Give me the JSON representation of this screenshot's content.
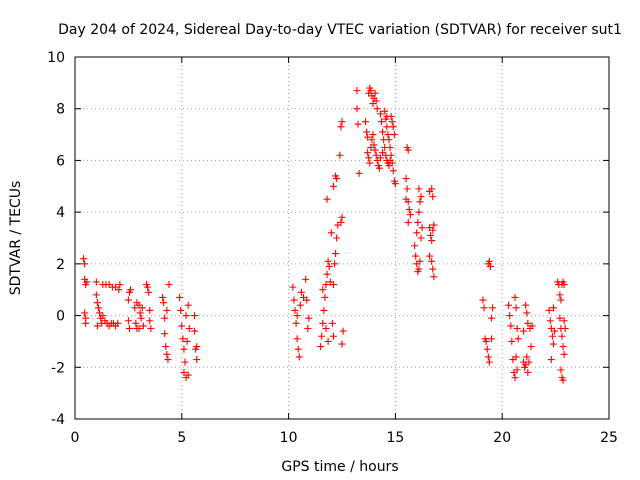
{
  "chart_data": {
    "type": "scatter",
    "title": "Day 204 of 2024, Sidereal Day-to-day VTEC variation (SDTVAR) for receiver sut1",
    "xlabel": "GPS time / hours",
    "ylabel": "SDTVAR / TECUs",
    "xlim": [
      0,
      25
    ],
    "ylim": [
      -4,
      10
    ],
    "xticks": [
      0,
      5,
      10,
      15,
      20,
      25
    ],
    "yticks": [
      -4,
      -2,
      0,
      2,
      4,
      6,
      8,
      10
    ],
    "xtick_labels": [
      "0",
      "5",
      "10",
      "15",
      "20",
      "25"
    ],
    "ytick_labels": [
      "-4",
      "-2",
      "0",
      "2",
      "4",
      "6",
      "8",
      "10"
    ],
    "grid": true,
    "marker": "+",
    "color": "#ff0000",
    "series": [
      {
        "name": "SDTVAR",
        "points": [
          [
            0.4,
            2.2
          ],
          [
            0.45,
            2.0
          ],
          [
            0.45,
            1.4
          ],
          [
            0.5,
            1.2
          ],
          [
            0.5,
            -0.1
          ],
          [
            0.45,
            0.1
          ],
          [
            0.5,
            -0.3
          ],
          [
            0.55,
            1.3
          ],
          [
            1.0,
            0.8
          ],
          [
            1.05,
            0.5
          ],
          [
            1.1,
            0.3
          ],
          [
            1.15,
            0.1
          ],
          [
            1.2,
            -0.1
          ],
          [
            1.25,
            -0.3
          ],
          [
            1.05,
            -0.4
          ],
          [
            1.0,
            1.3
          ],
          [
            1.3,
            0.0
          ],
          [
            1.4,
            -0.2
          ],
          [
            1.5,
            -0.3
          ],
          [
            1.6,
            -0.4
          ],
          [
            1.7,
            -0.3
          ],
          [
            1.8,
            -0.3
          ],
          [
            1.9,
            -0.4
          ],
          [
            2.0,
            -0.3
          ],
          [
            1.3,
            1.2
          ],
          [
            1.45,
            1.2
          ],
          [
            1.6,
            1.2
          ],
          [
            1.75,
            1.1
          ],
          [
            1.9,
            1.1
          ],
          [
            2.05,
            1.0
          ],
          [
            2.1,
            1.2
          ],
          [
            2.5,
            -0.2
          ],
          [
            2.55,
            -0.5
          ],
          [
            2.5,
            0.6
          ],
          [
            2.55,
            0.9
          ],
          [
            2.6,
            1.0
          ],
          [
            2.8,
            0.3
          ],
          [
            2.85,
            -0.3
          ],
          [
            2.9,
            -0.5
          ],
          [
            2.9,
            0.5
          ],
          [
            3.0,
            0.4
          ],
          [
            3.05,
            0.1
          ],
          [
            3.1,
            -0.1
          ],
          [
            3.0,
            -0.5
          ],
          [
            3.15,
            0.3
          ],
          [
            3.2,
            -0.4
          ],
          [
            3.35,
            1.2
          ],
          [
            3.4,
            1.1
          ],
          [
            3.45,
            0.9
          ],
          [
            3.5,
            -0.2
          ],
          [
            3.55,
            -0.5
          ],
          [
            3.5,
            0.2
          ],
          [
            4.1,
            0.7
          ],
          [
            4.15,
            0.5
          ],
          [
            4.2,
            -0.1
          ],
          [
            4.2,
            -0.7
          ],
          [
            4.25,
            -1.2
          ],
          [
            4.3,
            -1.5
          ],
          [
            4.35,
            -1.7
          ],
          [
            4.4,
            1.2
          ],
          [
            4.3,
            0.2
          ],
          [
            4.9,
            0.7
          ],
          [
            4.95,
            0.2
          ],
          [
            5.0,
            -0.4
          ],
          [
            5.05,
            -0.9
          ],
          [
            5.1,
            -1.3
          ],
          [
            5.15,
            -1.8
          ],
          [
            5.1,
            -2.2
          ],
          [
            5.2,
            -2.4
          ],
          [
            5.3,
            -2.3
          ],
          [
            5.25,
            -1.0
          ],
          [
            5.3,
            0.4
          ],
          [
            5.35,
            -0.5
          ],
          [
            5.2,
            0.0
          ],
          [
            5.6,
            0.0
          ],
          [
            5.6,
            -0.6
          ],
          [
            5.65,
            -1.3
          ],
          [
            5.7,
            -1.7
          ],
          [
            5.7,
            -1.2
          ],
          [
            10.2,
            1.1
          ],
          [
            10.25,
            0.6
          ],
          [
            10.3,
            0.2
          ],
          [
            10.35,
            -0.3
          ],
          [
            10.4,
            -0.9
          ],
          [
            10.45,
            -1.3
          ],
          [
            10.5,
            -1.6
          ],
          [
            10.55,
            0.4
          ],
          [
            10.6,
            0.9
          ],
          [
            10.7,
            0.7
          ],
          [
            10.8,
            1.4
          ],
          [
            10.85,
            0.6
          ],
          [
            10.9,
            -0.5
          ],
          [
            10.95,
            -0.1
          ],
          [
            10.4,
            0.0
          ],
          [
            11.5,
            -1.2
          ],
          [
            11.55,
            -0.8
          ],
          [
            11.6,
            -0.3
          ],
          [
            11.65,
            0.2
          ],
          [
            11.7,
            0.7
          ],
          [
            11.75,
            1.2
          ],
          [
            11.8,
            1.6
          ],
          [
            11.85,
            2.1
          ],
          [
            11.9,
            1.9
          ],
          [
            11.85,
            -1.0
          ],
          [
            11.75,
            -0.5
          ],
          [
            11.95,
            1.3
          ],
          [
            11.6,
            1.0
          ],
          [
            12.05,
            -0.3
          ],
          [
            12.1,
            -0.8
          ],
          [
            12.15,
            2.0
          ],
          [
            12.2,
            2.4
          ],
          [
            12.25,
            3.0
          ],
          [
            12.3,
            3.5
          ],
          [
            12.0,
            3.2
          ],
          [
            12.1,
            1.2
          ],
          [
            11.8,
            4.5
          ],
          [
            12.1,
            5.0
          ],
          [
            12.2,
            5.4
          ],
          [
            12.25,
            5.3
          ],
          [
            12.45,
            3.6
          ],
          [
            12.5,
            3.8
          ],
          [
            12.45,
            7.3
          ],
          [
            12.5,
            7.5
          ],
          [
            12.4,
            6.2
          ],
          [
            12.55,
            -0.6
          ],
          [
            12.5,
            -1.1
          ],
          [
            13.2,
            8.7
          ],
          [
            13.2,
            8.0
          ],
          [
            13.25,
            7.4
          ],
          [
            13.3,
            5.5
          ],
          [
            13.6,
            7.5
          ],
          [
            13.65,
            7.1
          ],
          [
            13.7,
            6.9
          ],
          [
            13.75,
            8.6
          ],
          [
            13.8,
            8.8
          ],
          [
            13.85,
            8.7
          ],
          [
            13.9,
            8.5
          ],
          [
            13.95,
            8.2
          ],
          [
            14.0,
            8.4
          ],
          [
            14.05,
            8.6
          ],
          [
            14.1,
            8.3
          ],
          [
            14.15,
            8.0
          ],
          [
            13.7,
            6.3
          ],
          [
            13.75,
            6.1
          ],
          [
            13.8,
            5.9
          ],
          [
            13.85,
            6.5
          ],
          [
            13.9,
            6.8
          ],
          [
            13.95,
            7.0
          ],
          [
            14.0,
            6.6
          ],
          [
            14.05,
            6.4
          ],
          [
            14.1,
            6.2
          ],
          [
            14.15,
            6.0
          ],
          [
            14.2,
            5.8
          ],
          [
            14.25,
            5.7
          ],
          [
            14.3,
            7.8
          ],
          [
            14.35,
            7.5
          ],
          [
            14.4,
            7.1
          ],
          [
            14.45,
            6.8
          ],
          [
            14.5,
            6.5
          ],
          [
            14.55,
            6.2
          ],
          [
            14.6,
            6.0
          ],
          [
            14.65,
            5.9
          ],
          [
            14.7,
            5.8
          ],
          [
            14.5,
            7.9
          ],
          [
            14.55,
            7.6
          ],
          [
            14.6,
            7.3
          ],
          [
            14.65,
            7.0
          ],
          [
            14.7,
            6.8
          ],
          [
            14.75,
            6.5
          ],
          [
            14.8,
            6.2
          ],
          [
            14.85,
            5.9
          ],
          [
            14.9,
            5.6
          ],
          [
            14.95,
            5.2
          ],
          [
            15.0,
            5.1
          ],
          [
            14.8,
            7.7
          ],
          [
            14.85,
            7.5
          ],
          [
            14.9,
            7.3
          ],
          [
            14.95,
            7.0
          ],
          [
            14.75,
            6.0
          ],
          [
            14.6,
            7.7
          ],
          [
            14.4,
            6.3
          ],
          [
            14.3,
            6.1
          ],
          [
            15.55,
            6.5
          ],
          [
            15.6,
            6.4
          ],
          [
            15.5,
            5.3
          ],
          [
            15.55,
            4.9
          ],
          [
            15.6,
            4.4
          ],
          [
            15.65,
            4.1
          ],
          [
            15.7,
            3.9
          ],
          [
            15.6,
            3.6
          ],
          [
            15.5,
            4.5
          ],
          [
            15.9,
            2.7
          ],
          [
            15.95,
            2.3
          ],
          [
            16.0,
            2.0
          ],
          [
            16.05,
            1.7
          ],
          [
            16.1,
            1.8
          ],
          [
            16.15,
            2.1
          ],
          [
            16.0,
            3.2
          ],
          [
            16.05,
            3.6
          ],
          [
            16.1,
            4.0
          ],
          [
            16.15,
            4.4
          ],
          [
            16.2,
            4.6
          ],
          [
            16.1,
            4.9
          ],
          [
            16.2,
            3.0
          ],
          [
            16.25,
            3.4
          ],
          [
            16.6,
            4.8
          ],
          [
            16.7,
            4.9
          ],
          [
            16.75,
            4.6
          ],
          [
            16.6,
            3.4
          ],
          [
            16.65,
            3.1
          ],
          [
            16.7,
            2.9
          ],
          [
            16.75,
            3.3
          ],
          [
            16.8,
            3.5
          ],
          [
            16.6,
            2.3
          ],
          [
            16.7,
            2.1
          ],
          [
            16.75,
            1.8
          ],
          [
            16.8,
            1.5
          ],
          [
            19.1,
            0.6
          ],
          [
            19.15,
            0.3
          ],
          [
            19.2,
            -0.9
          ],
          [
            19.25,
            -1.0
          ],
          [
            19.3,
            -1.3
          ],
          [
            19.35,
            -1.6
          ],
          [
            19.4,
            -1.8
          ],
          [
            19.35,
            2.0
          ],
          [
            19.4,
            2.1
          ],
          [
            19.45,
            1.9
          ],
          [
            19.5,
            -0.1
          ],
          [
            19.55,
            0.3
          ],
          [
            19.5,
            -0.9
          ],
          [
            20.3,
            0.4
          ],
          [
            20.35,
            0.0
          ],
          [
            20.4,
            -0.4
          ],
          [
            20.45,
            -1.0
          ],
          [
            20.5,
            -1.7
          ],
          [
            20.55,
            -2.2
          ],
          [
            20.6,
            -2.4
          ],
          [
            20.6,
            0.7
          ],
          [
            20.65,
            0.3
          ],
          [
            20.7,
            -0.5
          ],
          [
            20.75,
            -0.9
          ],
          [
            20.7,
            -2.1
          ],
          [
            20.65,
            -1.6
          ],
          [
            21.0,
            -1.8
          ],
          [
            21.05,
            -2.0
          ],
          [
            21.1,
            -1.9
          ],
          [
            21.15,
            -1.6
          ],
          [
            21.2,
            -2.2
          ],
          [
            21.25,
            -1.8
          ],
          [
            21.0,
            -0.6
          ],
          [
            21.1,
            0.4
          ],
          [
            21.15,
            0.1
          ],
          [
            21.2,
            -0.3
          ],
          [
            21.3,
            -0.5
          ],
          [
            21.4,
            -0.4
          ],
          [
            21.35,
            -1.2
          ],
          [
            22.2,
            0.2
          ],
          [
            22.25,
            -0.2
          ],
          [
            22.3,
            -0.5
          ],
          [
            22.35,
            -0.8
          ],
          [
            22.4,
            -1.1
          ],
          [
            22.3,
            -1.7
          ],
          [
            22.4,
            0.3
          ],
          [
            22.45,
            -0.6
          ],
          [
            22.6,
            1.3
          ],
          [
            22.65,
            1.2
          ],
          [
            22.7,
            0.8
          ],
          [
            22.75,
            0.6
          ],
          [
            22.8,
            1.2
          ],
          [
            22.85,
            1.3
          ],
          [
            22.9,
            1.2
          ],
          [
            22.7,
            -0.1
          ],
          [
            22.75,
            -0.5
          ],
          [
            22.8,
            -0.8
          ],
          [
            22.85,
            -1.2
          ],
          [
            22.9,
            -0.2
          ],
          [
            22.95,
            -0.5
          ],
          [
            22.75,
            -2.1
          ],
          [
            22.8,
            -2.4
          ],
          [
            22.85,
            -2.5
          ],
          [
            22.9,
            -1.5
          ]
        ]
      }
    ]
  }
}
